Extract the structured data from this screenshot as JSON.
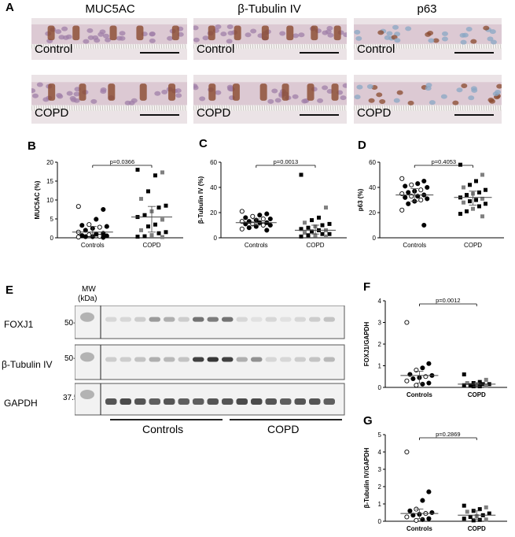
{
  "panel_a": {
    "letter": "A",
    "columns": [
      {
        "title": "MUC5AC",
        "images": [
          {
            "label": "Control"
          },
          {
            "label": "COPD"
          }
        ]
      },
      {
        "title": "β-Tubulin IV",
        "images": [
          {
            "label": "Control"
          },
          {
            "label": "COPD"
          }
        ]
      },
      {
        "title": "p63",
        "images": [
          {
            "label": "Control"
          },
          {
            "label": "COPD"
          }
        ]
      }
    ],
    "colors": {
      "brown_stain": "#8a4a2e",
      "hematoxylin": "#a07fa8",
      "tissue_bg": "#e6dcdf"
    }
  },
  "chart_data": [
    {
      "panel": "B",
      "type": "scatter",
      "title": "",
      "xlabel": "",
      "ylabel": "MUC5AC (%)",
      "categories": [
        "Controls",
        "COPD"
      ],
      "ylim": [
        0,
        20
      ],
      "yticks": [
        0,
        5,
        10,
        15,
        20
      ],
      "significance": "p=0.0366",
      "series": [
        {
          "group": "Controls",
          "median": 1.5,
          "iqr": [
            0.4,
            3.0
          ],
          "points": [
            8.3,
            7.5,
            4.9,
            3.5,
            3.3,
            3.0,
            2.8,
            2.5,
            2.0,
            1.5,
            1.2,
            1.0,
            0.8,
            0.6,
            0.5,
            0.4,
            0.3,
            0.3,
            0.2,
            0.1
          ]
        },
        {
          "group": "COPD",
          "median": 5.5,
          "iqr": [
            1.5,
            8.3
          ],
          "points": [
            18.0,
            17.3,
            16.5,
            12.3,
            10.3,
            8.5,
            8.0,
            7.0,
            6.0,
            5.5,
            4.8,
            3.5,
            3.0,
            2.0,
            1.5,
            1.2,
            0.7,
            0.4,
            0.3,
            0.2
          ]
        }
      ]
    },
    {
      "panel": "C",
      "type": "scatter",
      "title": "",
      "xlabel": "",
      "ylabel": "β-Tubulin IV (%)",
      "categories": [
        "Controls",
        "COPD"
      ],
      "ylim": [
        0,
        60
      ],
      "yticks": [
        0,
        20,
        40,
        60
      ],
      "significance": "p=0.0013",
      "series": [
        {
          "group": "Controls",
          "median": 12,
          "iqr": [
            10,
            15
          ],
          "points": [
            21,
            19,
            18,
            17,
            16,
            15,
            15,
            14,
            13,
            13,
            12,
            12,
            11,
            11,
            10,
            10,
            9,
            8,
            7,
            6
          ]
        },
        {
          "group": "COPD",
          "median": 6,
          "iqr": [
            3,
            10
          ],
          "points": [
            50,
            24,
            16,
            14,
            12,
            11,
            10,
            9,
            8,
            7,
            6,
            6,
            5,
            4,
            3,
            3,
            2,
            2,
            1,
            1
          ]
        }
      ]
    },
    {
      "panel": "D",
      "type": "scatter",
      "title": "",
      "xlabel": "",
      "ylabel": "p63 (%)",
      "categories": [
        "Controls",
        "COPD"
      ],
      "ylim": [
        0,
        60
      ],
      "yticks": [
        0,
        20,
        40,
        60
      ],
      "significance": "p=0.4053",
      "series": [
        {
          "group": "Controls",
          "median": 34,
          "iqr": [
            29,
            39
          ],
          "points": [
            47,
            45,
            43,
            42,
            41,
            40,
            38,
            37,
            36,
            35,
            34,
            33,
            33,
            32,
            31,
            30,
            29,
            27,
            22,
            10
          ]
        },
        {
          "group": "COPD",
          "median": 32,
          "iqr": [
            26,
            37
          ],
          "points": [
            58,
            50,
            45,
            42,
            40,
            38,
            36,
            35,
            34,
            32,
            31,
            30,
            29,
            28,
            27,
            25,
            23,
            21,
            19,
            17
          ]
        }
      ]
    },
    {
      "panel": "F",
      "type": "scatter",
      "title": "",
      "xlabel": "",
      "ylabel": "FOXJ1/GAPDH",
      "categories": [
        "Controls",
        "COPD"
      ],
      "ylim": [
        0,
        4
      ],
      "yticks": [
        0,
        1,
        2,
        3,
        4
      ],
      "significance": "p=0.0012",
      "series": [
        {
          "group": "Controls",
          "median": 0.55,
          "iqr": [
            0.2,
            0.75
          ],
          "points": [
            3.0,
            1.1,
            0.9,
            0.8,
            0.6,
            0.55,
            0.5,
            0.45,
            0.4,
            0.3,
            0.2,
            0.15,
            0.1
          ]
        },
        {
          "group": "COPD",
          "median": 0.15,
          "iqr": [
            0.05,
            0.22
          ],
          "points": [
            0.6,
            0.35,
            0.25,
            0.2,
            0.2,
            0.15,
            0.15,
            0.12,
            0.1,
            0.1,
            0.08,
            0.05,
            0.05
          ]
        }
      ]
    },
    {
      "panel": "G",
      "type": "scatter",
      "title": "",
      "xlabel": "",
      "ylabel": "β-Tubulin IV/GAPDH",
      "categories": [
        "Controls",
        "COPD"
      ],
      "ylim": [
        0,
        5
      ],
      "yticks": [
        0,
        1,
        2,
        3,
        4,
        5
      ],
      "significance": "p=0.2869",
      "series": [
        {
          "group": "Controls",
          "median": 0.45,
          "iqr": [
            0.15,
            0.7
          ],
          "points": [
            4.0,
            1.7,
            1.2,
            0.7,
            0.6,
            0.5,
            0.45,
            0.4,
            0.35,
            0.25,
            0.15,
            0.1,
            0.05
          ]
        },
        {
          "group": "COPD",
          "median": 0.35,
          "iqr": [
            0.1,
            0.6
          ],
          "points": [
            0.9,
            0.8,
            0.7,
            0.6,
            0.55,
            0.45,
            0.35,
            0.3,
            0.25,
            0.15,
            0.1,
            0.08,
            0.05
          ]
        }
      ]
    }
  ],
  "panel_e": {
    "letter": "E",
    "mw_header": [
      "MW",
      "(kDa)"
    ],
    "rows": [
      {
        "label": "FOXJ1",
        "mw": "50-",
        "bands": [
          0.1,
          0.1,
          0.15,
          0.4,
          0.3,
          0.15,
          0.6,
          0.55,
          0.6,
          0.1,
          0.05,
          0.1,
          0.05,
          0.1,
          0.15,
          0.2
        ]
      },
      {
        "label": "β-Tubulin IV",
        "mw": "50-",
        "bands": [
          0.15,
          0.15,
          0.2,
          0.3,
          0.25,
          0.2,
          0.85,
          0.9,
          0.85,
          0.3,
          0.45,
          0.1,
          0.1,
          0.15,
          0.2,
          0.25
        ]
      },
      {
        "label": "GAPDH",
        "mw": "37.5-",
        "bands": [
          0.75,
          0.8,
          0.75,
          0.7,
          0.75,
          0.7,
          0.7,
          0.75,
          0.75,
          0.8,
          0.8,
          0.75,
          0.7,
          0.75,
          0.75,
          0.7
        ]
      }
    ],
    "groups": [
      "Controls",
      "COPD"
    ]
  },
  "colors": {
    "controls_open": "#ffffff",
    "controls_filled": "#000000",
    "copd_black": "#000000",
    "copd_grey": "#808080"
  }
}
